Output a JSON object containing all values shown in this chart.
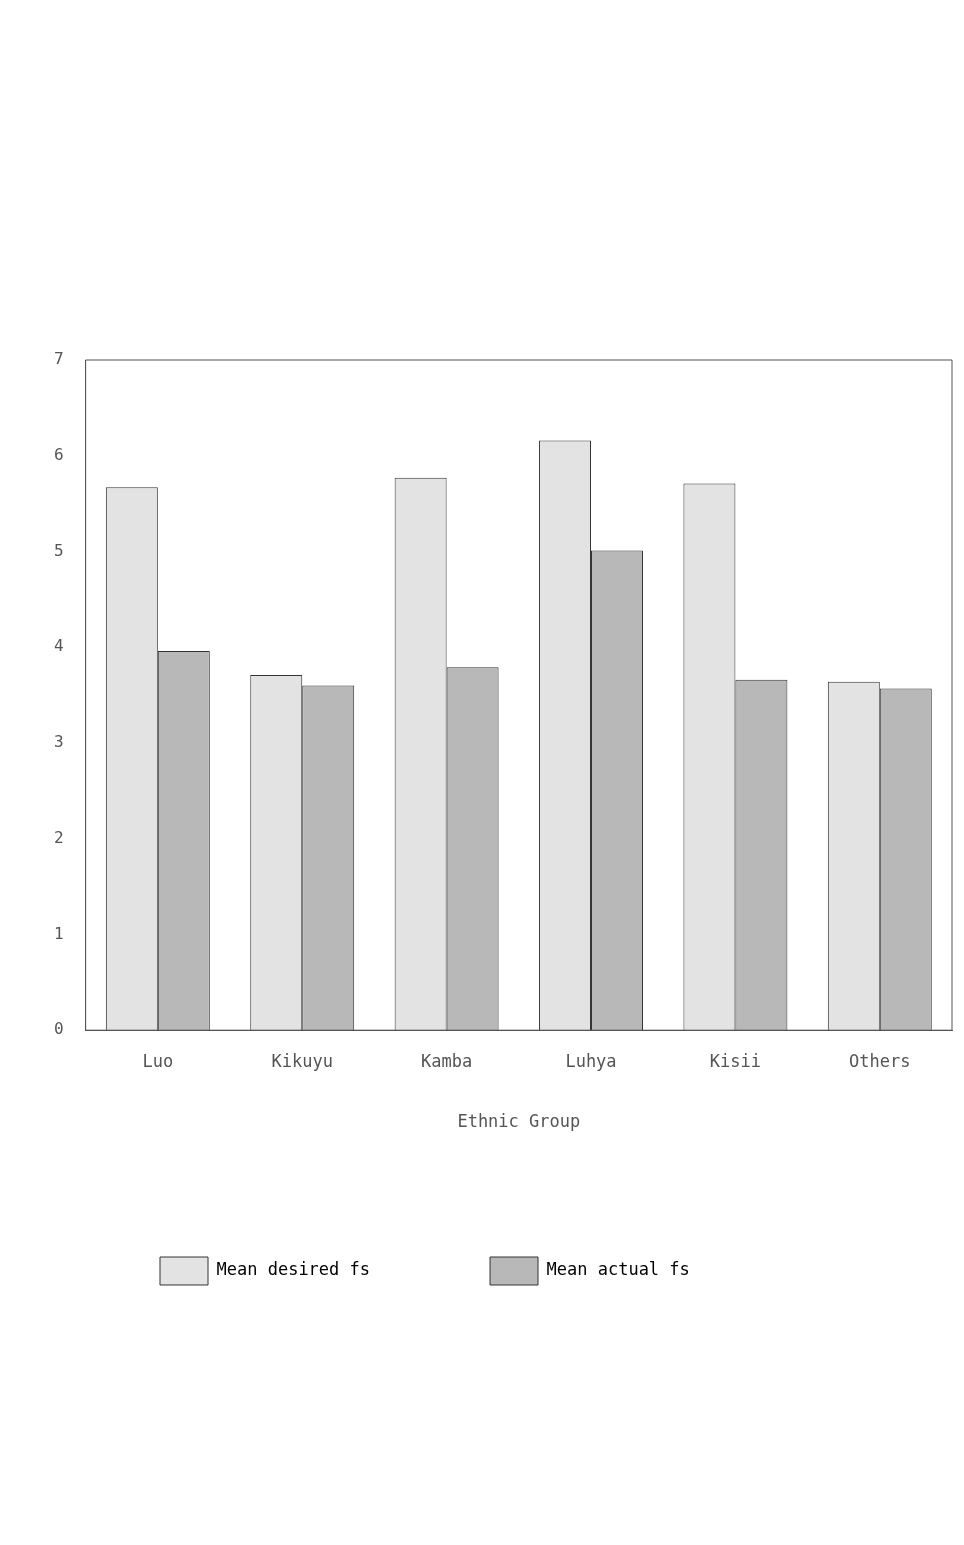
{
  "chart_data": {
    "type": "bar",
    "xlabel": "Ethnic Group",
    "categories": [
      "Luo",
      "Kikuyu",
      "Kamba",
      "Luhya",
      "Kisii",
      "Others"
    ],
    "series": [
      {
        "name": "Mean desired fs",
        "color": "#e3e3e3",
        "values": [
          5.67,
          3.71,
          5.77,
          6.16,
          5.71,
          3.64
        ]
      },
      {
        "name": "Mean actual fs",
        "color": "#b8b8b8",
        "values": [
          3.96,
          3.6,
          3.79,
          5.01,
          3.66,
          3.57
        ]
      }
    ],
    "ylim": [
      0,
      7
    ],
    "yticks": [
      0,
      1,
      2,
      3,
      4,
      5,
      6,
      7
    ],
    "grid": false,
    "legend": "bottom"
  }
}
